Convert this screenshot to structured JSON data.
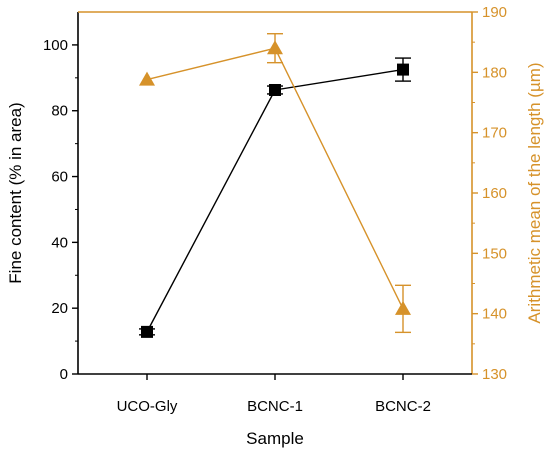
{
  "chart_data": {
    "type": "line",
    "title": "",
    "xlabel": "Sample",
    "ylabel": "Fine content (% in area)",
    "y2label": "Arithmetic mean of the length (µm)",
    "categories": [
      "UCO-Gly",
      "BCNC-1",
      "BCNC-2"
    ],
    "ylim": [
      0,
      110
    ],
    "y2lim": [
      130,
      190
    ],
    "yticks": [
      0,
      20,
      40,
      60,
      80,
      100
    ],
    "y2ticks": [
      130,
      140,
      150,
      160,
      170,
      180,
      190
    ],
    "grid": false,
    "legend": "none",
    "colors": {
      "left": "#000000",
      "right": "#d6922a"
    },
    "series": [
      {
        "axis": "left",
        "marker": "square",
        "values": [
          12.8,
          86.3,
          92.5
        ],
        "errors": [
          0.9,
          1.2,
          3.5
        ]
      },
      {
        "axis": "right",
        "marker": "triangle",
        "values": [
          178.8,
          184.0,
          140.8
        ],
        "errors": [
          0.0,
          2.4,
          3.9
        ]
      }
    ]
  }
}
